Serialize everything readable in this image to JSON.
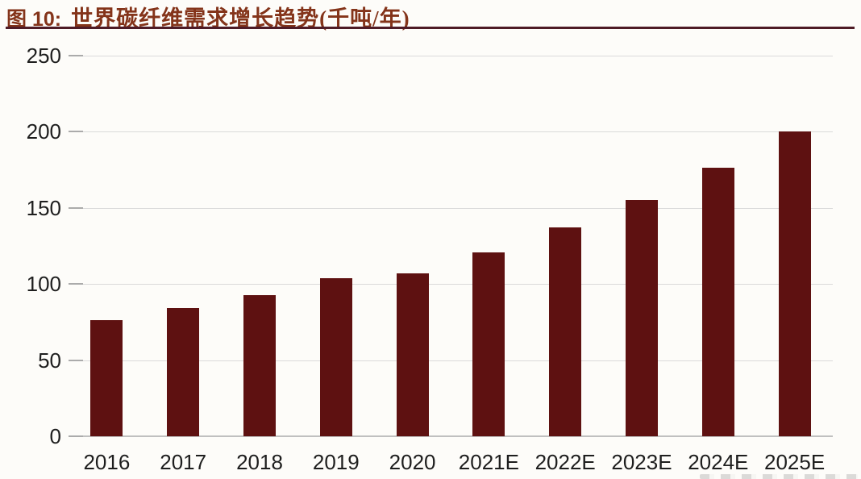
{
  "page": {
    "background_color": "#fdfcf9"
  },
  "header": {
    "figure_label": "图 10:",
    "figure_title": "世界碳纤维需求增长趋势(千吨/年)",
    "title_color": "#84341a",
    "underline_color": "#4e1b26"
  },
  "chart_data": {
    "type": "bar",
    "title": "世界碳纤维需求增长趋势(千吨/年)",
    "unit_label": "千吨/年",
    "categories": [
      "2016",
      "2017",
      "2018",
      "2019",
      "2020",
      "2021E",
      "2022E",
      "2023E",
      "2024E",
      "2025E"
    ],
    "values": [
      76.5,
      84.2,
      92.6,
      103.7,
      106.9,
      121,
      137,
      155,
      176.5,
      200
    ],
    "xlabel": "",
    "ylabel": "",
    "ylim": [
      0,
      250
    ],
    "yticks": [
      0,
      50,
      100,
      150,
      200,
      250
    ],
    "grid": true,
    "legend_position": "none",
    "bar_color": "#5e1111",
    "gridline_color": "#dadada",
    "axis_line_color": "#c0c0c0",
    "tick_mark_color": "#ababab",
    "tick_label_color": "#1e1e1e"
  }
}
